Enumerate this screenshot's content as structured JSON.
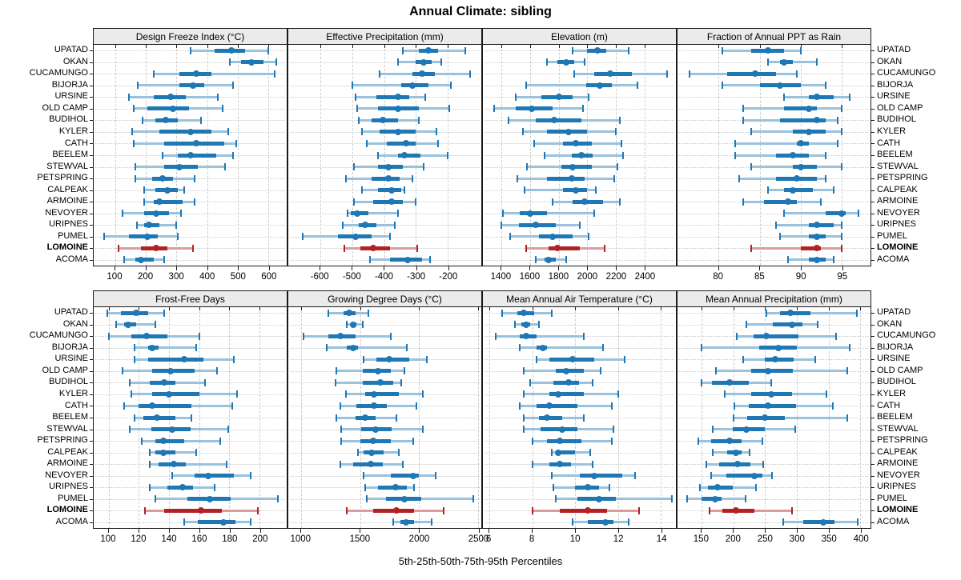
{
  "chart_data": {
    "type": "scatter",
    "subtype": "horizontal-percentile-intervals",
    "title": "Annual Climate: sibling",
    "caption": "5th-25th-50th-75th-95th Percentiles",
    "percentiles": [
      5,
      25,
      50,
      75,
      95
    ],
    "legend_position": "none",
    "grid": true,
    "stations": [
      "UPATAD",
      "OKAN",
      "CUCAMUNGO",
      "BIJORJA",
      "URSINE",
      "OLD CAMP",
      "BUDIHOL",
      "KYLER",
      "CATH",
      "BEELEM",
      "STEWVAL",
      "PETSPRING",
      "CALPEAK",
      "ARMOINE",
      "NEVOYER",
      "URIPNES",
      "PUMEL",
      "LOMOINE",
      "ACOMA"
    ],
    "highlight_station": "LOMOINE",
    "colors": {
      "normal_line": "#9AC2DD",
      "normal_solid": "#1F77B4",
      "highlight_line": "#DC9C9C",
      "highlight_solid": "#B22222",
      "strip_bg": "#EBEBEB",
      "grid_line": "#CCCCCC"
    },
    "panels": [
      {
        "title": "Design Freeze Index (°C)",
        "xlim": [
          30,
          660
        ],
        "ticks": [
          100,
          200,
          300,
          400,
          500,
          600
        ],
        "series": [
          [
            345,
            425,
            480,
            525,
            600
          ],
          [
            475,
            510,
            545,
            585,
            625
          ],
          [
            225,
            310,
            365,
            415,
            620
          ],
          [
            175,
            310,
            355,
            390,
            485
          ],
          [
            145,
            225,
            280,
            330,
            435
          ],
          [
            160,
            205,
            290,
            340,
            450
          ],
          [
            190,
            230,
            265,
            305,
            380
          ],
          [
            155,
            245,
            345,
            415,
            470
          ],
          [
            160,
            260,
            365,
            455,
            495
          ],
          [
            255,
            305,
            345,
            430,
            485
          ],
          [
            165,
            260,
            310,
            370,
            460
          ],
          [
            165,
            220,
            255,
            290,
            360
          ],
          [
            195,
            230,
            270,
            305,
            325
          ],
          [
            195,
            225,
            245,
            320,
            360
          ],
          [
            125,
            195,
            235,
            275,
            315
          ],
          [
            170,
            195,
            210,
            245,
            300
          ],
          [
            65,
            145,
            205,
            240,
            305
          ],
          [
            110,
            185,
            235,
            270,
            355
          ],
          [
            130,
            165,
            185,
            225,
            260
          ]
        ]
      },
      {
        "title": "Effective Precipitation (mm)",
        "xlim": [
          -700,
          -95
        ],
        "ticks": [
          -600,
          -500,
          -400,
          -300,
          -200
        ],
        "series": [
          [
            -340,
            -290,
            -260,
            -230,
            -145
          ],
          [
            -355,
            -300,
            -275,
            -250,
            -220
          ],
          [
            -415,
            -310,
            -280,
            -240,
            -130
          ],
          [
            -500,
            -345,
            -310,
            -260,
            -190
          ],
          [
            -490,
            -425,
            -355,
            -320,
            -270
          ],
          [
            -485,
            -420,
            -355,
            -290,
            -195
          ],
          [
            -480,
            -440,
            -405,
            -355,
            -290
          ],
          [
            -470,
            -415,
            -355,
            -300,
            -235
          ],
          [
            -455,
            -390,
            -330,
            -300,
            -230
          ],
          [
            -420,
            -355,
            -335,
            -285,
            -200
          ],
          [
            -495,
            -420,
            -385,
            -340,
            -275
          ],
          [
            -520,
            -440,
            -385,
            -350,
            -310
          ],
          [
            -470,
            -420,
            -375,
            -345,
            -335
          ],
          [
            -495,
            -435,
            -375,
            -340,
            -300
          ],
          [
            -515,
            -505,
            -485,
            -450,
            -355
          ],
          [
            -530,
            -480,
            -460,
            -425,
            -365
          ],
          [
            -655,
            -545,
            -490,
            -440,
            -380
          ],
          [
            -525,
            -475,
            -435,
            -380,
            -295
          ],
          [
            -445,
            -380,
            -325,
            -280,
            -255
          ]
        ]
      },
      {
        "title": "Elevation (m)",
        "xlim": [
          1270,
          2620
        ],
        "ticks": [
          1400,
          1600,
          1800,
          2000,
          2200,
          2400
        ],
        "series": [
          [
            1900,
            2000,
            2070,
            2130,
            2290
          ],
          [
            1720,
            1790,
            1850,
            1910,
            1980
          ],
          [
            1910,
            2050,
            2160,
            2310,
            2560
          ],
          [
            1570,
            1990,
            2090,
            2170,
            2350
          ],
          [
            1500,
            1680,
            1800,
            1900,
            2010
          ],
          [
            1350,
            1500,
            1610,
            1760,
            1970
          ],
          [
            1450,
            1640,
            1770,
            1960,
            2230
          ],
          [
            1550,
            1720,
            1870,
            2000,
            2200
          ],
          [
            1630,
            1830,
            1920,
            2030,
            2240
          ],
          [
            1700,
            1890,
            1960,
            2040,
            2250
          ],
          [
            1580,
            1820,
            1900,
            2030,
            2210
          ],
          [
            1510,
            1720,
            1890,
            1980,
            2190
          ],
          [
            1560,
            1830,
            1920,
            2000,
            2060
          ],
          [
            1760,
            1900,
            1980,
            2110,
            2230
          ],
          [
            1410,
            1530,
            1600,
            1720,
            2050
          ],
          [
            1400,
            1520,
            1640,
            1780,
            1950
          ],
          [
            1460,
            1660,
            1760,
            1900,
            2010
          ],
          [
            1570,
            1730,
            1790,
            1950,
            2120
          ],
          [
            1640,
            1700,
            1730,
            1780,
            1850
          ]
        ]
      },
      {
        "title": "Fraction of Annual PPT as Rain",
        "xlim": [
          75,
          98.5
        ],
        "ticks": [
          80,
          85,
          90,
          95
        ],
        "series": [
          [
            80.5,
            84,
            86,
            88,
            90
          ],
          [
            86,
            87.5,
            88,
            89,
            92
          ],
          [
            76.5,
            81,
            84.5,
            87,
            89.5
          ],
          [
            80.5,
            85,
            87.5,
            90,
            93
          ],
          [
            88,
            91,
            92,
            94,
            96
          ],
          [
            83,
            88,
            91,
            92,
            95
          ],
          [
            83,
            87.5,
            92,
            93,
            94.5
          ],
          [
            84,
            89,
            91,
            93,
            95
          ],
          [
            82,
            89.5,
            90,
            91,
            94.5
          ],
          [
            82,
            87,
            89,
            91,
            93
          ],
          [
            84,
            89,
            90,
            92,
            95
          ],
          [
            82.5,
            87,
            89.5,
            92,
            93
          ],
          [
            86,
            88,
            89,
            91.5,
            94
          ],
          [
            83,
            85.5,
            88.5,
            89.5,
            92.5
          ],
          [
            88,
            93,
            95,
            95.5,
            97
          ],
          [
            87,
            91,
            92,
            94,
            95
          ],
          [
            87.5,
            91,
            92,
            93,
            95
          ],
          [
            84,
            90,
            92,
            92.5,
            95
          ],
          [
            88.5,
            91,
            92,
            93,
            94
          ]
        ]
      },
      {
        "title": "Frost-Free Days",
        "xlim": [
          90,
          218
        ],
        "ticks": [
          100,
          120,
          140,
          160,
          180,
          200
        ],
        "series": [
          [
            99,
            108,
            118,
            126,
            137
          ],
          [
            105,
            110,
            113,
            118,
            131
          ],
          [
            100,
            115,
            125,
            139,
            160
          ],
          [
            117,
            126,
            129,
            133,
            158
          ],
          [
            117,
            126,
            150,
            163,
            183
          ],
          [
            109,
            129,
            141,
            157,
            172
          ],
          [
            114,
            127,
            137,
            144,
            164
          ],
          [
            115,
            129,
            140,
            160,
            185
          ],
          [
            110,
            120,
            129,
            155,
            182
          ],
          [
            117,
            123,
            132,
            144,
            155
          ],
          [
            114,
            128,
            142,
            154,
            179
          ],
          [
            122,
            131,
            136,
            150,
            174
          ],
          [
            127,
            131,
            136,
            144,
            158
          ],
          [
            127,
            133,
            143,
            151,
            178
          ],
          [
            142,
            157,
            166,
            183,
            194
          ],
          [
            127,
            139,
            149,
            156,
            170
          ],
          [
            131,
            152,
            167,
            181,
            212
          ],
          [
            124,
            137,
            161,
            175,
            199
          ],
          [
            150,
            159,
            176,
            184,
            194
          ]
        ]
      },
      {
        "title": "Growing Degree Days (°C)",
        "xlim": [
          890,
          2530
        ],
        "ticks": [
          1000,
          1500,
          2000,
          2500
        ],
        "series": [
          [
            1230,
            1360,
            1410,
            1460,
            1570
          ],
          [
            1390,
            1420,
            1440,
            1470,
            1520
          ],
          [
            1020,
            1230,
            1330,
            1460,
            1760
          ],
          [
            1220,
            1390,
            1440,
            1480,
            1900
          ],
          [
            1530,
            1640,
            1750,
            1920,
            2070
          ],
          [
            1300,
            1520,
            1650,
            1760,
            1880
          ],
          [
            1290,
            1520,
            1670,
            1780,
            1850
          ],
          [
            1380,
            1540,
            1620,
            1830,
            2030
          ],
          [
            1330,
            1470,
            1620,
            1730,
            1980
          ],
          [
            1300,
            1460,
            1540,
            1630,
            1810
          ],
          [
            1340,
            1510,
            1630,
            1770,
            2030
          ],
          [
            1340,
            1500,
            1610,
            1760,
            1950
          ],
          [
            1480,
            1530,
            1600,
            1700,
            1830
          ],
          [
            1330,
            1440,
            1590,
            1690,
            1860
          ],
          [
            1530,
            1760,
            1950,
            2000,
            2140
          ],
          [
            1540,
            1650,
            1800,
            1900,
            1960
          ],
          [
            1560,
            1720,
            1880,
            2020,
            2460
          ],
          [
            1390,
            1610,
            1810,
            1960,
            2210
          ],
          [
            1780,
            1840,
            1890,
            1960,
            2110
          ]
        ]
      },
      {
        "title": "Mean Annual Air Temperature (°C)",
        "xlim": [
          5.7,
          14.7
        ],
        "ticks": [
          6,
          8,
          10,
          12,
          14
        ],
        "series": [
          [
            6.6,
            7.3,
            7.6,
            8.1,
            8.9
          ],
          [
            7.2,
            7.5,
            7.7,
            7.9,
            8.3
          ],
          [
            6.3,
            7.4,
            7.7,
            8.2,
            10.4
          ],
          [
            7.4,
            8.2,
            8.5,
            8.7,
            11.3
          ],
          [
            8.2,
            8.8,
            9.9,
            10.9,
            12.3
          ],
          [
            7.6,
            9.1,
            9.6,
            10.4,
            11.2
          ],
          [
            7.9,
            9.0,
            9.7,
            10.2,
            10.8
          ],
          [
            7.6,
            8.8,
            9.2,
            10.4,
            12.0
          ],
          [
            7.4,
            8.2,
            8.8,
            10.1,
            11.7
          ],
          [
            7.6,
            8.3,
            8.7,
            9.4,
            10.4
          ],
          [
            7.6,
            8.4,
            9.4,
            10.1,
            11.8
          ],
          [
            8.0,
            8.7,
            9.3,
            10.3,
            11.7
          ],
          [
            8.9,
            9.1,
            9.2,
            10.0,
            10.7
          ],
          [
            8.0,
            8.8,
            9.3,
            9.8,
            10.8
          ],
          [
            8.9,
            10.2,
            10.9,
            12.2,
            12.8
          ],
          [
            9.0,
            10.0,
            10.6,
            11.1,
            11.6
          ],
          [
            9.1,
            10.1,
            11.1,
            11.9,
            14.5
          ],
          [
            8.0,
            9.3,
            10.6,
            11.5,
            13.0
          ],
          [
            9.9,
            10.6,
            11.4,
            11.8,
            12.5
          ]
        ]
      },
      {
        "title": "Mean Annual Precipitation (mm)",
        "xlim": [
          112,
          416
        ],
        "ticks": [
          150,
          200,
          250,
          300,
          350,
          400
        ],
        "series": [
          [
            252,
            273,
            290,
            322,
            394
          ],
          [
            221,
            262,
            292,
            309,
            333
          ],
          [
            205,
            232,
            252,
            303,
            362
          ],
          [
            150,
            241,
            271,
            300,
            383
          ],
          [
            215,
            250,
            266,
            295,
            329
          ],
          [
            172,
            228,
            254,
            294,
            379
          ],
          [
            150,
            166,
            194,
            224,
            259
          ],
          [
            186,
            228,
            259,
            292,
            347
          ],
          [
            201,
            224,
            255,
            299,
            357
          ],
          [
            200,
            222,
            249,
            281,
            380
          ],
          [
            168,
            199,
            221,
            249,
            297
          ],
          [
            145,
            165,
            194,
            213,
            246
          ],
          [
            167,
            190,
            204,
            213,
            225
          ],
          [
            157,
            178,
            207,
            227,
            247
          ],
          [
            165,
            189,
            233,
            246,
            261
          ],
          [
            147,
            160,
            175,
            199,
            235
          ],
          [
            127,
            150,
            171,
            182,
            219
          ],
          [
            163,
            183,
            204,
            233,
            292
          ],
          [
            278,
            310,
            341,
            359,
            396
          ]
        ]
      }
    ]
  }
}
